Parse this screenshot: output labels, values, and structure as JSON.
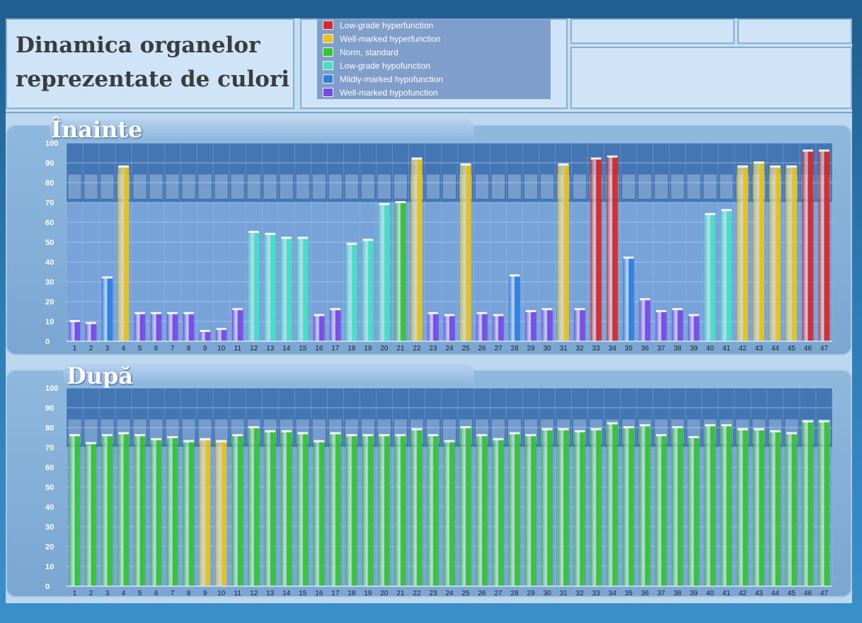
{
  "header": {
    "title_line1": "Dinamica organelor",
    "title_line2": "reprezentate de culori"
  },
  "legend": [
    {
      "label": "Low-grade hyperfunction",
      "color": "#d8282a"
    },
    {
      "label": "Well-marked hyperfunction",
      "color": "#e8c421"
    },
    {
      "label": "Norm, standard",
      "color": "#36c436"
    },
    {
      "label": "Low-grade hypofunction",
      "color": "#46e0c8"
    },
    {
      "label": "Mildly-marked hypofunction",
      "color": "#2f7fe0"
    },
    {
      "label": "Well-marked hypofunction",
      "color": "#7a4ae6"
    }
  ],
  "chart_data": [
    {
      "type": "bar",
      "title": "Înainte",
      "categories": [
        "1",
        "2",
        "3",
        "4",
        "5",
        "6",
        "7",
        "8",
        "9",
        "10",
        "11",
        "12",
        "13",
        "14",
        "15",
        "16",
        "17",
        "18",
        "19",
        "20",
        "21",
        "22",
        "23",
        "24",
        "25",
        "26",
        "27",
        "28",
        "29",
        "30",
        "31",
        "32",
        "33",
        "34",
        "35",
        "36",
        "37",
        "38",
        "39",
        "40",
        "41",
        "42",
        "43",
        "44",
        "45",
        "46",
        "47"
      ],
      "values": [
        10,
        9,
        32,
        88,
        14,
        14,
        14,
        14,
        5,
        6,
        16,
        55,
        54,
        52,
        52,
        13,
        16,
        49,
        51,
        69,
        70,
        92,
        14,
        13,
        89,
        14,
        13,
        33,
        15,
        16,
        89,
        16,
        92,
        93,
        42,
        21,
        15,
        16,
        13,
        64,
        66,
        88,
        90,
        88,
        88,
        96,
        96
      ],
      "status": [
        "well_hypo",
        "well_hypo",
        "mild_hypo",
        "well_hyper",
        "well_hypo",
        "well_hypo",
        "well_hypo",
        "well_hypo",
        "well_hypo",
        "well_hypo",
        "well_hypo",
        "low_hypo",
        "low_hypo",
        "low_hypo",
        "low_hypo",
        "well_hypo",
        "well_hypo",
        "low_hypo",
        "low_hypo",
        "low_hypo",
        "norm",
        "well_hyper",
        "well_hypo",
        "well_hypo",
        "well_hyper",
        "well_hypo",
        "well_hypo",
        "mild_hypo",
        "well_hypo",
        "well_hypo",
        "well_hyper",
        "well_hypo",
        "low_hyper",
        "low_hyper",
        "mild_hypo",
        "well_hypo",
        "well_hypo",
        "well_hypo",
        "well_hypo",
        "low_hypo",
        "low_hypo",
        "well_hyper",
        "well_hyper",
        "well_hyper",
        "well_hyper",
        "low_hyper",
        "low_hyper"
      ],
      "ylim": [
        0,
        100
      ],
      "yticks": [
        "0",
        "10",
        "20",
        "30",
        "40",
        "50",
        "60",
        "70",
        "80",
        "90",
        "100"
      ]
    },
    {
      "type": "bar",
      "title": "După",
      "categories": [
        "1",
        "2",
        "3",
        "4",
        "5",
        "6",
        "7",
        "8",
        "9",
        "10",
        "11",
        "12",
        "13",
        "14",
        "15",
        "16",
        "17",
        "18",
        "19",
        "20",
        "21",
        "22",
        "23",
        "24",
        "25",
        "26",
        "27",
        "28",
        "29",
        "30",
        "31",
        "32",
        "33",
        "34",
        "35",
        "36",
        "37",
        "38",
        "39",
        "40",
        "41",
        "42",
        "43",
        "44",
        "45",
        "46",
        "47"
      ],
      "values": [
        76,
        72,
        76,
        77,
        76,
        74,
        75,
        73,
        74,
        73,
        76,
        80,
        78,
        78,
        77,
        73,
        77,
        76,
        76,
        76,
        76,
        79,
        76,
        73,
        80,
        76,
        74,
        77,
        76,
        79,
        79,
        78,
        79,
        82,
        80,
        81,
        76,
        80,
        75,
        81,
        81,
        79,
        79,
        78,
        77,
        83,
        83
      ],
      "status": [
        "norm",
        "norm",
        "norm",
        "norm",
        "norm",
        "norm",
        "norm",
        "norm",
        "well_hyper",
        "well_hyper",
        "norm",
        "norm",
        "norm",
        "norm",
        "norm",
        "norm",
        "norm",
        "norm",
        "norm",
        "norm",
        "norm",
        "norm",
        "norm",
        "norm",
        "norm",
        "norm",
        "norm",
        "norm",
        "norm",
        "norm",
        "norm",
        "norm",
        "norm",
        "norm",
        "norm",
        "norm",
        "norm",
        "norm",
        "norm",
        "norm",
        "norm",
        "norm",
        "norm",
        "norm",
        "norm",
        "norm",
        "norm"
      ],
      "ylim": [
        0,
        100
      ],
      "yticks": [
        "0",
        "10",
        "20",
        "30",
        "40",
        "50",
        "60",
        "70",
        "80",
        "90",
        "100"
      ]
    }
  ],
  "status_colors": {
    "low_hyper": "#d8282a",
    "well_hyper": "#e8c421",
    "norm": "#36c436",
    "low_hypo": "#46e0c8",
    "mild_hypo": "#2f7fe0",
    "well_hypo": "#7a4ae6"
  }
}
